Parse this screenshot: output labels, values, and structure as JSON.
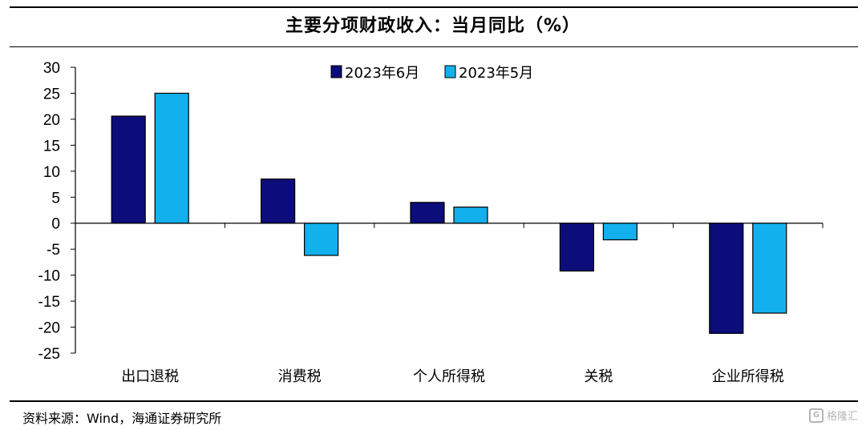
{
  "chart_data": {
    "type": "bar",
    "title": "主要分项财政收入：当月同比（%）",
    "categories": [
      "出口退税",
      "消费税",
      "个人所得税",
      "关税",
      "企业所得税"
    ],
    "series": [
      {
        "name": "2023年6月",
        "color": "#0c0c7a",
        "values": [
          20.6,
          8.5,
          4.0,
          -9.2,
          -21.2
        ]
      },
      {
        "name": "2023年5月",
        "color": "#12b0ec",
        "values": [
          25.0,
          -6.2,
          3.1,
          -3.2,
          -17.3
        ]
      }
    ],
    "ylim": [
      -25,
      30
    ],
    "yticks": [
      30,
      25,
      20,
      15,
      10,
      5,
      0,
      -5,
      -10,
      -15,
      -20,
      -25
    ],
    "xlabel": "",
    "ylabel": "",
    "legend_position": "top-center",
    "grid": false
  },
  "footer": {
    "source": "资料来源：Wind，海通证券研究所"
  },
  "watermark": {
    "icon": "g-logo-icon",
    "text": "格隆汇"
  }
}
